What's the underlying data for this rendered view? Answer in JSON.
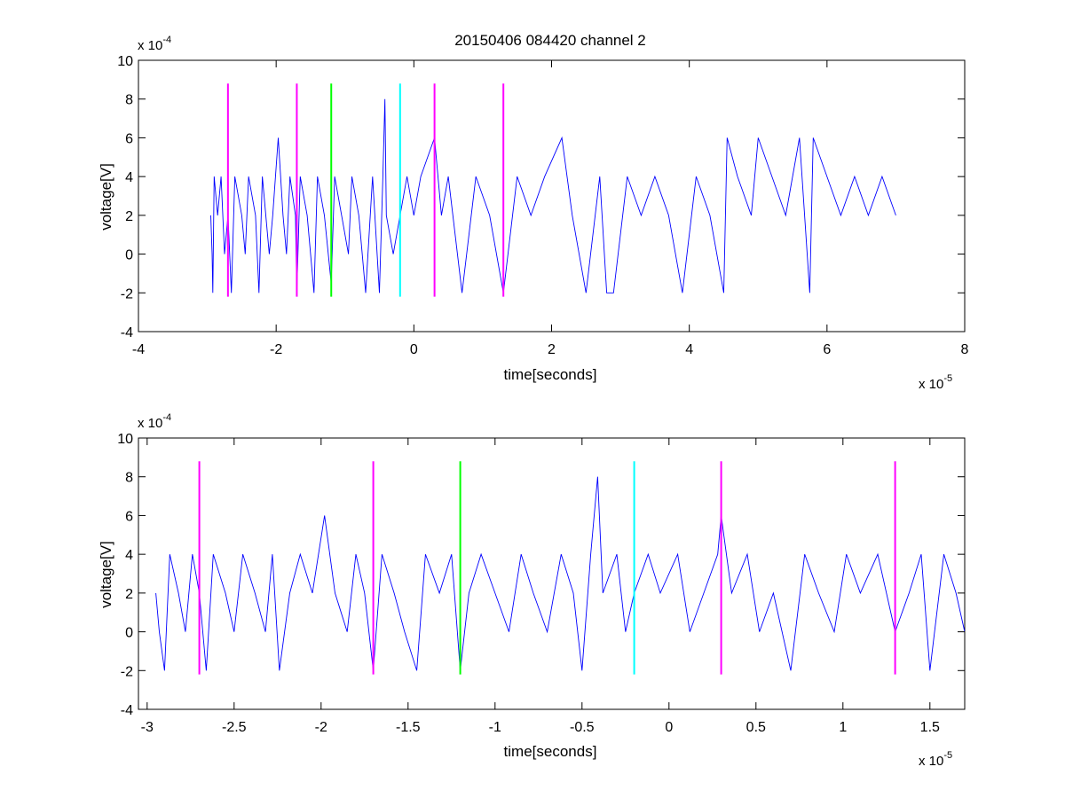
{
  "figure": {
    "title": "20150406 084420 channel 2"
  },
  "chart_data": [
    {
      "type": "line",
      "title": "20150406 084420 channel 2",
      "xlabel": "time[seconds]",
      "ylabel": "voltage[V]",
      "x_multiplier": "x 10",
      "x_multiplier_exp": "-5",
      "y_multiplier": "x 10",
      "y_multiplier_exp": "-4",
      "xlim": [
        -4,
        8
      ],
      "ylim": [
        -4,
        10
      ],
      "xticks": [
        -4,
        -2,
        0,
        2,
        4,
        6,
        8
      ],
      "xtick_labels": [
        "-4",
        "-2",
        "0",
        "2",
        "4",
        "6",
        "8"
      ],
      "yticks": [
        -4,
        -2,
        0,
        2,
        4,
        6,
        8,
        10
      ],
      "ytick_labels": [
        "-4",
        "-2",
        "0",
        "2",
        "4",
        "6",
        "8",
        "10"
      ],
      "grid": false,
      "series": [
        {
          "color": "#0000ff",
          "x_range": [
            -2.95,
            7.0
          ],
          "values_note_only": false,
          "points": [
            [
              -2.95,
              2
            ],
            [
              -2.93,
              0
            ],
            [
              -2.92,
              -2
            ],
            [
              -2.9,
              4
            ],
            [
              -2.85,
              2
            ],
            [
              -2.8,
              4
            ],
            [
              -2.75,
              0
            ],
            [
              -2.7,
              2
            ],
            [
              -2.65,
              -2
            ],
            [
              -2.6,
              4
            ],
            [
              -2.5,
              2
            ],
            [
              -2.45,
              0
            ],
            [
              -2.4,
              4
            ],
            [
              -2.3,
              2
            ],
            [
              -2.25,
              -2
            ],
            [
              -2.2,
              4
            ],
            [
              -2.1,
              0
            ],
            [
              -2.05,
              2
            ],
            [
              -1.97,
              6
            ],
            [
              -1.9,
              2
            ],
            [
              -1.85,
              0
            ],
            [
              -1.8,
              4
            ],
            [
              -1.72,
              2
            ],
            [
              -1.7,
              -2
            ],
            [
              -1.65,
              4
            ],
            [
              -1.55,
              2
            ],
            [
              -1.45,
              -2
            ],
            [
              -1.4,
              4
            ],
            [
              -1.3,
              2
            ],
            [
              -1.2,
              -1.5
            ],
            [
              -1.15,
              4
            ],
            [
              -1.05,
              2
            ],
            [
              -0.95,
              0
            ],
            [
              -0.9,
              4
            ],
            [
              -0.8,
              2
            ],
            [
              -0.7,
              -2
            ],
            [
              -0.6,
              4
            ],
            [
              -0.5,
              -2
            ],
            [
              -0.45,
              4
            ],
            [
              -0.42,
              8
            ],
            [
              -0.4,
              2
            ],
            [
              -0.3,
              0
            ],
            [
              -0.2,
              2
            ],
            [
              -0.1,
              4
            ],
            [
              0,
              2
            ],
            [
              0.1,
              4
            ],
            [
              0.3,
              6
            ],
            [
              0.4,
              2
            ],
            [
              0.5,
              4
            ],
            [
              0.7,
              -2
            ],
            [
              0.9,
              4
            ],
            [
              1.1,
              2
            ],
            [
              1.3,
              -2
            ],
            [
              1.5,
              4
            ],
            [
              1.7,
              2
            ],
            [
              1.9,
              4
            ],
            [
              2.15,
              6
            ],
            [
              2.3,
              2
            ],
            [
              2.5,
              -2
            ],
            [
              2.7,
              4
            ],
            [
              2.8,
              -2
            ],
            [
              2.9,
              -2
            ],
            [
              3.1,
              4
            ],
            [
              3.3,
              2
            ],
            [
              3.5,
              4
            ],
            [
              3.7,
              2
            ],
            [
              3.9,
              -2
            ],
            [
              4.1,
              4
            ],
            [
              4.3,
              2
            ],
            [
              4.5,
              -2
            ],
            [
              4.55,
              6
            ],
            [
              4.7,
              4
            ],
            [
              4.9,
              2
            ],
            [
              5.0,
              6
            ],
            [
              5.2,
              4
            ],
            [
              5.4,
              2
            ],
            [
              5.6,
              6
            ],
            [
              5.75,
              -2
            ],
            [
              5.8,
              6
            ],
            [
              6.0,
              4
            ],
            [
              6.2,
              2
            ],
            [
              6.4,
              4
            ],
            [
              6.6,
              2
            ],
            [
              6.8,
              4
            ],
            [
              7.0,
              2
            ]
          ]
        }
      ],
      "markers": [
        {
          "x": -2.7,
          "color": "#ff00ff"
        },
        {
          "x": -1.7,
          "color": "#ff00ff"
        },
        {
          "x": -1.2,
          "color": "#00ff00"
        },
        {
          "x": -0.2,
          "color": "#00ffff"
        },
        {
          "x": 0.3,
          "color": "#ff00ff"
        },
        {
          "x": 1.3,
          "color": "#ff00ff"
        }
      ],
      "marker_y_range": [
        -2.2,
        8.8
      ]
    },
    {
      "type": "line",
      "title": "",
      "xlabel": "time[seconds]",
      "ylabel": "voltage[V]",
      "x_multiplier": "x 10",
      "x_multiplier_exp": "-5",
      "y_multiplier": "x 10",
      "y_multiplier_exp": "-4",
      "xlim": [
        -3.05,
        1.7
      ],
      "ylim": [
        -4,
        10
      ],
      "xticks": [
        -3,
        -2.5,
        -2,
        -1.5,
        -1,
        -0.5,
        0,
        0.5,
        1,
        1.5
      ],
      "xtick_labels": [
        "-3",
        "-2.5",
        "-2",
        "-1.5",
        "-1",
        "-0.5",
        "0",
        "0.5",
        "1",
        "1.5"
      ],
      "yticks": [
        -4,
        -2,
        0,
        2,
        4,
        6,
        8,
        10
      ],
      "ytick_labels": [
        "-4",
        "-2",
        "0",
        "2",
        "4",
        "6",
        "8",
        "10"
      ],
      "grid": false,
      "series": [
        {
          "color": "#0000ff",
          "x_range": [
            -2.95,
            1.7
          ],
          "points": [
            [
              -2.95,
              2
            ],
            [
              -2.93,
              0
            ],
            [
              -2.9,
              -2
            ],
            [
              -2.87,
              4
            ],
            [
              -2.82,
              2
            ],
            [
              -2.78,
              0
            ],
            [
              -2.74,
              4
            ],
            [
              -2.7,
              2
            ],
            [
              -2.66,
              -2
            ],
            [
              -2.62,
              4
            ],
            [
              -2.55,
              2
            ],
            [
              -2.5,
              0
            ],
            [
              -2.45,
              4
            ],
            [
              -2.38,
              2
            ],
            [
              -2.32,
              0
            ],
            [
              -2.28,
              4
            ],
            [
              -2.24,
              -2
            ],
            [
              -2.18,
              2
            ],
            [
              -2.12,
              4
            ],
            [
              -2.05,
              2
            ],
            [
              -1.98,
              6
            ],
            [
              -1.92,
              2
            ],
            [
              -1.85,
              0
            ],
            [
              -1.8,
              4
            ],
            [
              -1.75,
              2
            ],
            [
              -1.7,
              -2
            ],
            [
              -1.65,
              4
            ],
            [
              -1.58,
              2
            ],
            [
              -1.52,
              0
            ],
            [
              -1.45,
              -2
            ],
            [
              -1.4,
              4
            ],
            [
              -1.32,
              2
            ],
            [
              -1.25,
              4
            ],
            [
              -1.2,
              -2
            ],
            [
              -1.15,
              2
            ],
            [
              -1.08,
              4
            ],
            [
              -1.0,
              2
            ],
            [
              -0.92,
              0
            ],
            [
              -0.85,
              4
            ],
            [
              -0.78,
              2
            ],
            [
              -0.7,
              0
            ],
            [
              -0.62,
              4
            ],
            [
              -0.55,
              2
            ],
            [
              -0.5,
              -2
            ],
            [
              -0.45,
              4
            ],
            [
              -0.41,
              8
            ],
            [
              -0.38,
              2
            ],
            [
              -0.3,
              4
            ],
            [
              -0.25,
              0
            ],
            [
              -0.2,
              2
            ],
            [
              -0.12,
              4
            ],
            [
              -0.05,
              2
            ],
            [
              0.05,
              4
            ],
            [
              0.12,
              0
            ],
            [
              0.2,
              2
            ],
            [
              0.28,
              4
            ],
            [
              0.3,
              6
            ],
            [
              0.36,
              2
            ],
            [
              0.45,
              4
            ],
            [
              0.52,
              0
            ],
            [
              0.6,
              2
            ],
            [
              0.7,
              -2
            ],
            [
              0.78,
              4
            ],
            [
              0.86,
              2
            ],
            [
              0.95,
              0
            ],
            [
              1.02,
              4
            ],
            [
              1.1,
              2
            ],
            [
              1.2,
              4
            ],
            [
              1.3,
              0
            ],
            [
              1.38,
              2
            ],
            [
              1.45,
              4
            ],
            [
              1.5,
              -2
            ],
            [
              1.58,
              4
            ],
            [
              1.65,
              2
            ],
            [
              1.7,
              0
            ]
          ]
        }
      ],
      "markers": [
        {
          "x": -2.7,
          "color": "#ff00ff"
        },
        {
          "x": -1.7,
          "color": "#ff00ff"
        },
        {
          "x": -1.2,
          "color": "#00ff00"
        },
        {
          "x": -0.2,
          "color": "#00ffff"
        },
        {
          "x": 0.3,
          "color": "#ff00ff"
        },
        {
          "x": 1.3,
          "color": "#ff00ff"
        }
      ],
      "marker_y_range": [
        -2.2,
        8.8
      ]
    }
  ]
}
